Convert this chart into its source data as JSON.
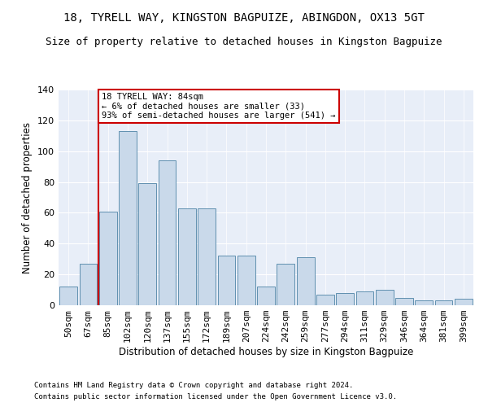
{
  "title": "18, TYRELL WAY, KINGSTON BAGPUIZE, ABINGDON, OX13 5GT",
  "subtitle": "Size of property relative to detached houses in Kingston Bagpuize",
  "xlabel": "Distribution of detached houses by size in Kingston Bagpuize",
  "ylabel": "Number of detached properties",
  "footer_line1": "Contains HM Land Registry data © Crown copyright and database right 2024.",
  "footer_line2": "Contains public sector information licensed under the Open Government Licence v3.0.",
  "annotation_title": "18 TYRELL WAY: 84sqm",
  "annotation_line2": "← 6% of detached houses are smaller (33)",
  "annotation_line3": "93% of semi-detached houses are larger (541) →",
  "bar_color": "#c9d9ea",
  "bar_edge_color": "#6090b0",
  "vline_color": "#cc0000",
  "annotation_box_color": "#cc0000",
  "bg_color": "#e8eef8",
  "categories": [
    "50sqm",
    "67sqm",
    "85sqm",
    "102sqm",
    "120sqm",
    "137sqm",
    "155sqm",
    "172sqm",
    "189sqm",
    "207sqm",
    "224sqm",
    "242sqm",
    "259sqm",
    "277sqm",
    "294sqm",
    "311sqm",
    "329sqm",
    "346sqm",
    "364sqm",
    "381sqm",
    "399sqm"
  ],
  "values": [
    12,
    27,
    61,
    113,
    79,
    94,
    63,
    63,
    32,
    32,
    12,
    27,
    31,
    7,
    8,
    9,
    10,
    5,
    3,
    3,
    4
  ],
  "vline_x_index": 2,
  "ylim": [
    0,
    140
  ],
  "yticks": [
    0,
    20,
    40,
    60,
    80,
    100,
    120,
    140
  ],
  "title_fontsize": 10,
  "subtitle_fontsize": 9,
  "xlabel_fontsize": 8.5,
  "ylabel_fontsize": 8.5,
  "footer_fontsize": 6.5,
  "tick_fontsize": 8,
  "annot_fontsize": 7.5
}
